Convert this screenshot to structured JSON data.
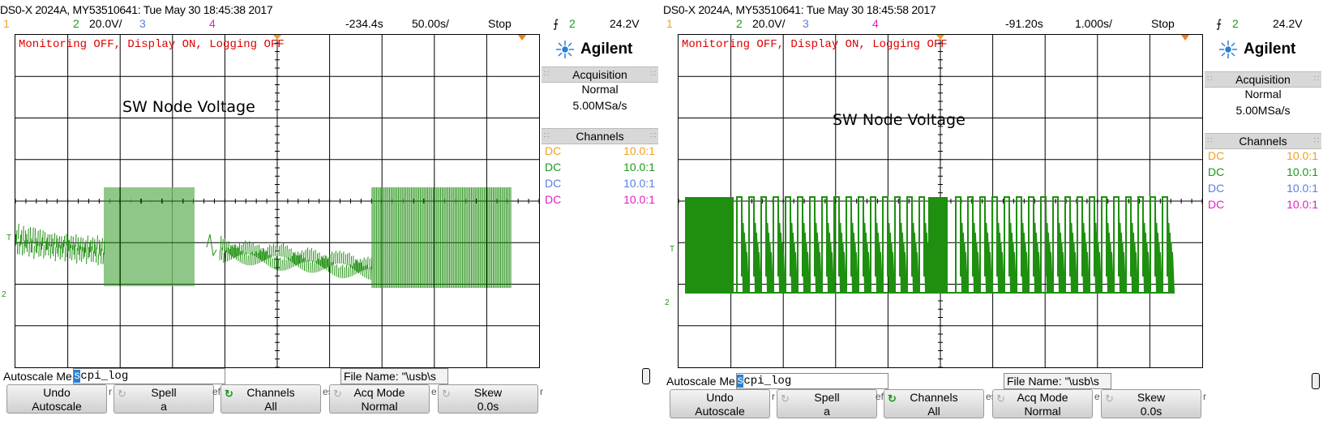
{
  "panels": [
    {
      "id": "left",
      "header": "DS0-X 2024A, MY53510641: Tue May 30 18:45:38 2017",
      "status": {
        "ch1": "1",
        "ch2": "2",
        "ch2_scale": "20.0V/",
        "ch3": "3",
        "ch4": "4",
        "delay": "-234.4s",
        "timebase": "50.00s/",
        "run_state": "Stop",
        "trig_ch": "2",
        "trig_level": "24.2V"
      },
      "overlay_message": "Monitoring OFF, Display ON, Logging OFF",
      "waveform_label": "SW Node Voltage",
      "brand": "Agilent",
      "acquisition": {
        "title": "Acquisition",
        "mode": "Normal",
        "rate": "5.00MSa/s"
      },
      "channels": {
        "title": "Channels",
        "rows": [
          {
            "coupling": "DC",
            "probe": "10.0:1",
            "color": "#f0a020"
          },
          {
            "coupling": "DC",
            "probe": "10.0:1",
            "color": "#1a9a1a"
          },
          {
            "coupling": "DC",
            "probe": "10.0:1",
            "color": "#5a7ee0"
          },
          {
            "coupling": "DC",
            "probe": "10.0:1",
            "color": "#e020c0"
          }
        ]
      },
      "bottom": {
        "autoscale_label": "Autoscale Me",
        "filename_value": "scpi_log",
        "filename_cursor_char": "s",
        "file_name_field": "File Name: \"\\usb\\s",
        "softkeys": [
          {
            "line1": "Undo",
            "line2": "Autoscale",
            "icon": ""
          },
          {
            "line1": "Spell",
            "line2": "a",
            "icon": "rotate-icon"
          },
          {
            "line1": "Channels",
            "line2": "All",
            "icon": "rotate-green-icon"
          },
          {
            "line1": "Acq Mode",
            "line2": "Normal",
            "icon": "rotate-icon"
          },
          {
            "line1": "Skew",
            "line2": "0.0s",
            "icon": "rotate-icon"
          }
        ],
        "softkey_separators": [
          "r",
          "ef",
          "es",
          "e",
          "r"
        ]
      },
      "markers": {
        "trigger_marker": "T",
        "ground_marker": "2"
      }
    },
    {
      "id": "right",
      "header": "DS0-X 2024A, MY53510641: Tue May 30 18:45:58 2017",
      "status": {
        "ch1": "1",
        "ch2": "2",
        "ch2_scale": "20.0V/",
        "ch3": "3",
        "ch4": "4",
        "delay": "-91.20s",
        "timebase": "1.000s/",
        "run_state": "Stop",
        "trig_ch": "2",
        "trig_level": "24.2V"
      },
      "overlay_message": "Monitoring OFF, Display ON, Logging OFF",
      "waveform_label": "SW Node Voltage",
      "brand": "Agilent",
      "acquisition": {
        "title": "Acquisition",
        "mode": "Normal",
        "rate": "5.00MSa/s"
      },
      "channels": {
        "title": "Channels",
        "rows": [
          {
            "coupling": "DC",
            "probe": "10.0:1",
            "color": "#f0a020"
          },
          {
            "coupling": "DC",
            "probe": "10.0:1",
            "color": "#1a9a1a"
          },
          {
            "coupling": "DC",
            "probe": "10.0:1",
            "color": "#5a7ee0"
          },
          {
            "coupling": "DC",
            "probe": "10.0:1",
            "color": "#e020c0"
          }
        ]
      },
      "bottom": {
        "autoscale_label": "Autoscale Me",
        "filename_value": "scpi_log",
        "filename_cursor_char": "s",
        "file_name_field": "File Name: \"\\usb\\s",
        "softkeys": [
          {
            "line1": "Undo",
            "line2": "Autoscale",
            "icon": ""
          },
          {
            "line1": "Spell",
            "line2": "a",
            "icon": "rotate-icon"
          },
          {
            "line1": "Channels",
            "line2": "All",
            "icon": "rotate-green-icon"
          },
          {
            "line1": "Acq Mode",
            "line2": "Normal",
            "icon": "rotate-icon"
          },
          {
            "line1": "Skew",
            "line2": "0.0s",
            "icon": "rotate-icon"
          }
        ],
        "softkey_separators": [
          "r",
          "ef",
          "es",
          "e",
          "r"
        ]
      },
      "markers": {
        "trigger_marker": "T",
        "ground_marker": "2"
      }
    }
  ],
  "colors": {
    "ch1": "#f0a020",
    "ch2": "#1a9a1a",
    "ch3": "#5a7ee0",
    "ch4": "#e020c0",
    "trace": "#1f8f10",
    "message": "#e00000",
    "grid": "#000000"
  }
}
